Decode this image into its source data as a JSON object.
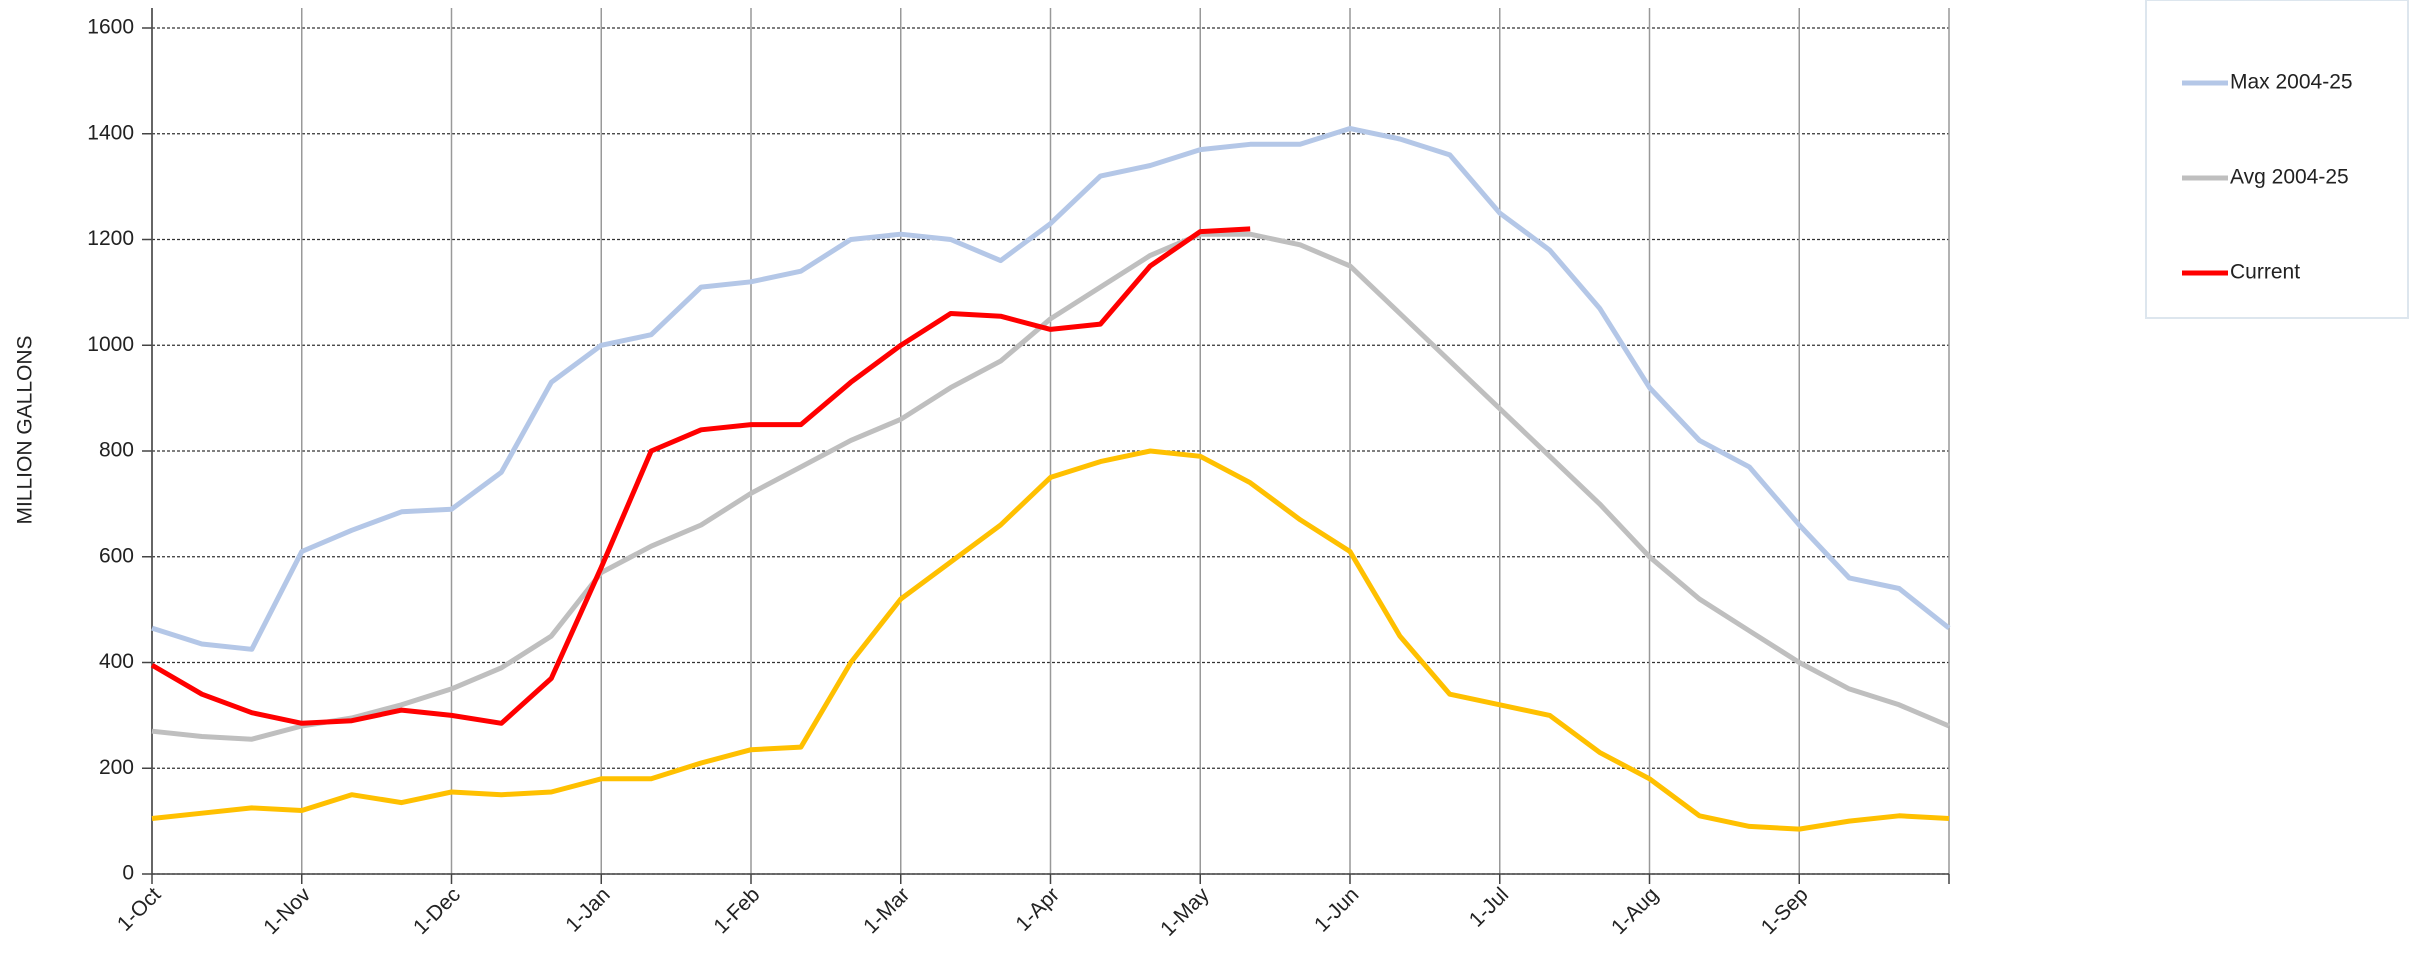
{
  "chart_data": {
    "type": "line",
    "y_label": "MILLION GALLONS",
    "categories": [
      "1-Oct",
      null,
      null,
      "1-Nov",
      null,
      null,
      "1-Dec",
      null,
      null,
      "1-Jan",
      null,
      null,
      "1-Feb",
      null,
      null,
      "1-Mar",
      null,
      null,
      "1-Apr",
      null,
      null,
      "1-May",
      null,
      null,
      "1-Jun",
      null,
      null,
      "1-Jul",
      null,
      null,
      "1-Aug",
      null,
      null,
      "1-Sep",
      null,
      null,
      null
    ],
    "series": [
      {
        "name": "Max 2004-25",
        "color": "#b4c7e7",
        "values": [
          465,
          435,
          425,
          610,
          650,
          685,
          690,
          760,
          930,
          1000,
          1020,
          1110,
          1120,
          1140,
          1200,
          1210,
          1200,
          1160,
          1230,
          1320,
          1340,
          1370,
          1380,
          1380,
          1410,
          1390,
          1360,
          1250,
          1180,
          1070,
          920,
          820,
          770,
          660,
          560,
          540,
          465
        ]
      },
      {
        "name": "Avg 2004-25",
        "color": "#bfbfbf",
        "values": [
          270,
          260,
          255,
          280,
          295,
          320,
          350,
          390,
          450,
          570,
          620,
          660,
          720,
          770,
          820,
          860,
          920,
          970,
          1050,
          1110,
          1170,
          1210,
          1210,
          1190,
          1150,
          1060,
          970,
          880,
          790,
          700,
          600,
          520,
          460,
          400,
          350,
          320,
          280
        ]
      },
      {
        "name": "Current",
        "color": "#ff0000",
        "values": [
          395,
          340,
          305,
          285,
          290,
          310,
          300,
          285,
          370,
          580,
          800,
          840,
          850,
          850,
          930,
          1000,
          1060,
          1055,
          1030,
          1040,
          1150,
          1215,
          1220,
          null,
          null,
          null,
          null,
          null,
          null,
          null,
          null,
          null,
          null,
          null,
          null,
          null,
          null
        ]
      },
      {
        "color": "#ffc000",
        "values": [
          105,
          115,
          125,
          120,
          150,
          135,
          155,
          150,
          155,
          180,
          180,
          210,
          235,
          240,
          400,
          520,
          590,
          660,
          750,
          780,
          800,
          790,
          740,
          670,
          610,
          450,
          340,
          320,
          300,
          230,
          180,
          110,
          90,
          85,
          100,
          110,
          105
        ]
      }
    ],
    "ylim": [
      0,
      1600
    ],
    "yticks": [
      0,
      200,
      400,
      600,
      800,
      1000,
      1200,
      1400,
      1600
    ],
    "grid": true,
    "legend": "top-right"
  }
}
